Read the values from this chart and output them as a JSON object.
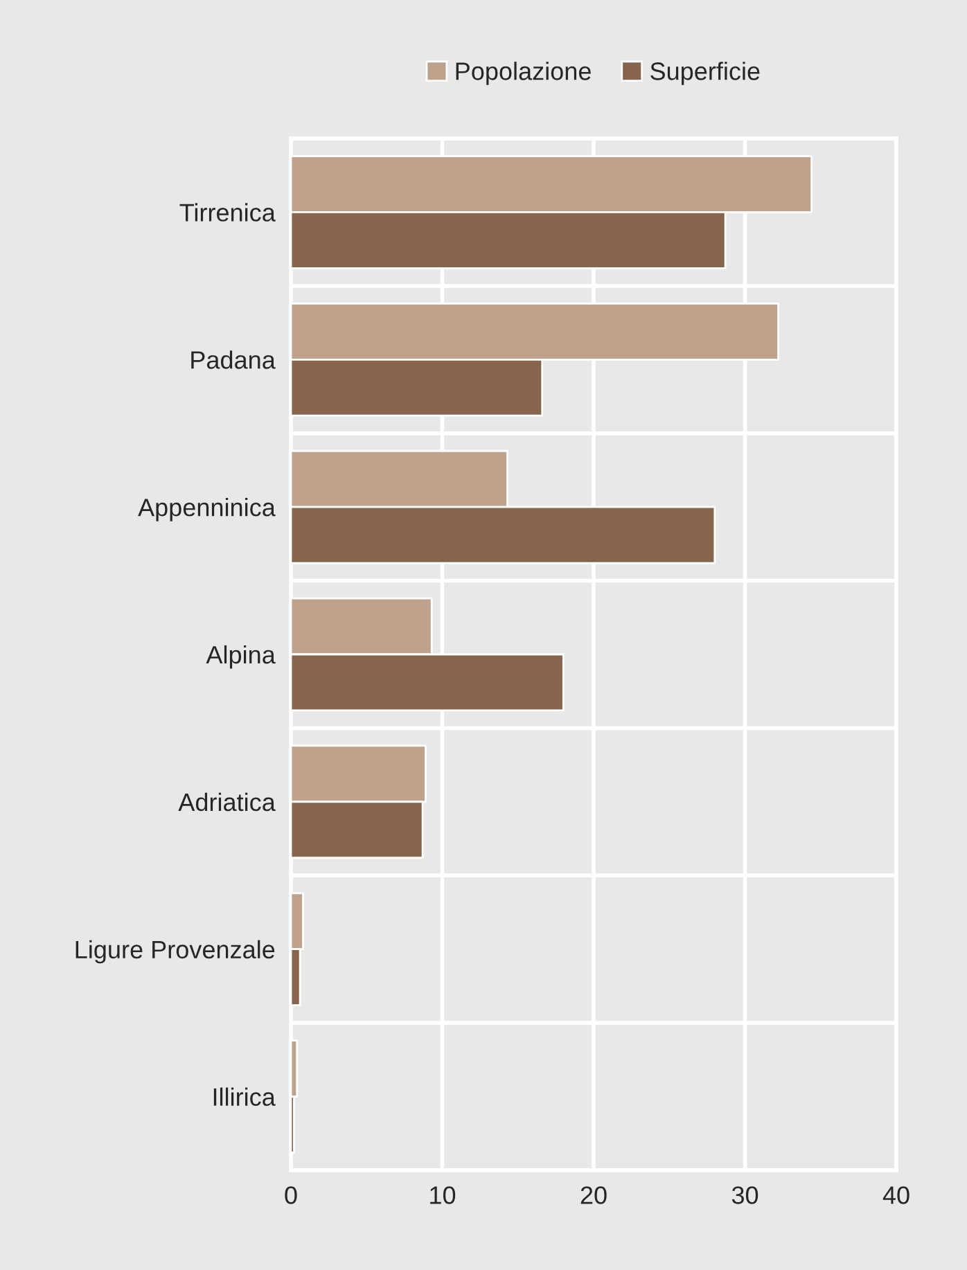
{
  "chart_data": {
    "type": "bar",
    "orientation": "horizontal",
    "categories": [
      "Tirrenica",
      "Padana",
      "Appenninica",
      "Alpina",
      "Adriatica",
      "Ligure Provenzale",
      "Illirica"
    ],
    "series": [
      {
        "name": "Popolazione",
        "color": "#bea28c",
        "values": [
          34.4,
          32.2,
          14.3,
          9.3,
          8.9,
          0.8,
          0.4
        ]
      },
      {
        "name": "Superficie",
        "color": "#87644c",
        "values": [
          28.7,
          16.6,
          28.0,
          18.0,
          8.7,
          0.6,
          0.2
        ]
      }
    ],
    "xlim": [
      0,
      40
    ],
    "xticks": [
      0,
      10,
      20,
      30,
      40
    ],
    "grid": true,
    "legend": "top"
  }
}
